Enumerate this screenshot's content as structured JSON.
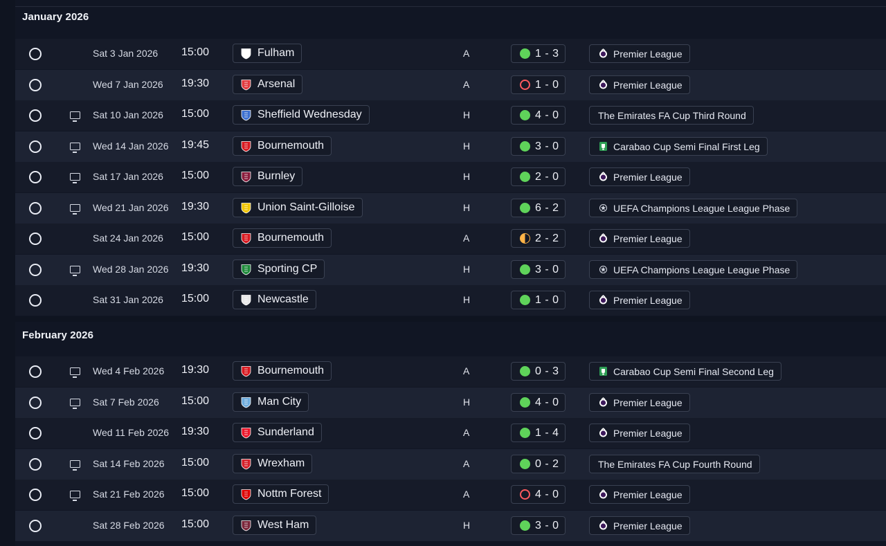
{
  "months": [
    {
      "label": "January 2026",
      "fixtures": [
        {
          "date": "Sat 3 Jan 2026",
          "time": "15:00",
          "opponent": "Fulham",
          "crest": "fulham-crest",
          "crest_color": "#ffffff",
          "tv": false,
          "venue": "A",
          "result": "win",
          "score": "1 - 3",
          "competition": "Premier League",
          "comp_icon": "premier-league-icon"
        },
        {
          "date": "Wed 7 Jan 2026",
          "time": "19:30",
          "opponent": "Arsenal",
          "crest": "arsenal-crest",
          "crest_color": "#e03a3e",
          "tv": false,
          "venue": "A",
          "result": "loss",
          "score": "1 - 0",
          "competition": "Premier League",
          "comp_icon": "premier-league-icon"
        },
        {
          "date": "Sat 10 Jan 2026",
          "time": "15:00",
          "opponent": "Sheffield Wednesday",
          "crest": "sheffield-wednesday-crest",
          "crest_color": "#3b6fd1",
          "tv": true,
          "venue": "H",
          "result": "win",
          "score": "4 - 0",
          "competition": "The Emirates FA Cup Third Round",
          "comp_icon": ""
        },
        {
          "date": "Wed 14 Jan 2026",
          "time": "19:45",
          "opponent": "Bournemouth",
          "crest": "bournemouth-crest",
          "crest_color": "#d71920",
          "tv": true,
          "venue": "H",
          "result": "win",
          "score": "3 - 0",
          "competition": "Carabao Cup Semi Final First Leg",
          "comp_icon": "carabao-cup-icon"
        },
        {
          "date": "Sat 17 Jan 2026",
          "time": "15:00",
          "opponent": "Burnley",
          "crest": "burnley-crest",
          "crest_color": "#8a1c3c",
          "tv": true,
          "venue": "H",
          "result": "win",
          "score": "2 - 0",
          "competition": "Premier League",
          "comp_icon": "premier-league-icon"
        },
        {
          "date": "Wed 21 Jan 2026",
          "time": "19:30",
          "opponent": "Union Saint-Gilloise",
          "crest": "union-sg-crest",
          "crest_color": "#f2c500",
          "tv": true,
          "venue": "H",
          "result": "win",
          "score": "6 - 2",
          "competition": "UEFA Champions League League Phase",
          "comp_icon": "champions-league-icon"
        },
        {
          "date": "Sat 24 Jan 2026",
          "time": "15:00",
          "opponent": "Bournemouth",
          "crest": "bournemouth-crest",
          "crest_color": "#d71920",
          "tv": false,
          "venue": "A",
          "result": "draw",
          "score": "2 - 2",
          "competition": "Premier League",
          "comp_icon": "premier-league-icon"
        },
        {
          "date": "Wed 28 Jan 2026",
          "time": "19:30",
          "opponent": "Sporting CP",
          "crest": "sporting-cp-crest",
          "crest_color": "#1f8a3b",
          "tv": true,
          "venue": "H",
          "result": "win",
          "score": "3 - 0",
          "competition": "UEFA Champions League League Phase",
          "comp_icon": "champions-league-icon"
        },
        {
          "date": "Sat 31 Jan 2026",
          "time": "15:00",
          "opponent": "Newcastle",
          "crest": "newcastle-crest",
          "crest_color": "#e8e8e8",
          "tv": false,
          "venue": "H",
          "result": "win",
          "score": "1 - 0",
          "competition": "Premier League",
          "comp_icon": "premier-league-icon"
        }
      ]
    },
    {
      "label": "February 2026",
      "fixtures": [
        {
          "date": "Wed 4 Feb 2026",
          "time": "19:30",
          "opponent": "Bournemouth",
          "crest": "bournemouth-crest",
          "crest_color": "#d71920",
          "tv": true,
          "venue": "A",
          "result": "win",
          "score": "0 - 3",
          "competition": "Carabao Cup Semi Final Second Leg",
          "comp_icon": "carabao-cup-icon"
        },
        {
          "date": "Sat 7 Feb 2026",
          "time": "15:00",
          "opponent": "Man City",
          "crest": "man-city-crest",
          "crest_color": "#6cabdd",
          "tv": true,
          "venue": "H",
          "result": "win",
          "score": "4 - 0",
          "competition": "Premier League",
          "comp_icon": "premier-league-icon"
        },
        {
          "date": "Wed 11 Feb 2026",
          "time": "19:30",
          "opponent": "Sunderland",
          "crest": "sunderland-crest",
          "crest_color": "#eb172b",
          "tv": false,
          "venue": "A",
          "result": "win",
          "score": "1 - 4",
          "competition": "Premier League",
          "comp_icon": "premier-league-icon"
        },
        {
          "date": "Sat 14 Feb 2026",
          "time": "15:00",
          "opponent": "Wrexham",
          "crest": "wrexham-crest",
          "crest_color": "#d4202a",
          "tv": true,
          "venue": "A",
          "result": "win",
          "score": "0 - 2",
          "competition": "The Emirates FA Cup Fourth Round",
          "comp_icon": ""
        },
        {
          "date": "Sat 21 Feb 2026",
          "time": "15:00",
          "opponent": "Nottm Forest",
          "crest": "nottm-forest-crest",
          "crest_color": "#dd0000",
          "tv": true,
          "venue": "A",
          "result": "loss",
          "score": "4 - 0",
          "competition": "Premier League",
          "comp_icon": "premier-league-icon"
        },
        {
          "date": "Sat 28 Feb 2026",
          "time": "15:00",
          "opponent": "West Ham",
          "crest": "west-ham-crest",
          "crest_color": "#7a263a",
          "tv": false,
          "venue": "H",
          "result": "win",
          "score": "3 - 0",
          "competition": "Premier League",
          "comp_icon": "premier-league-icon"
        }
      ]
    }
  ]
}
